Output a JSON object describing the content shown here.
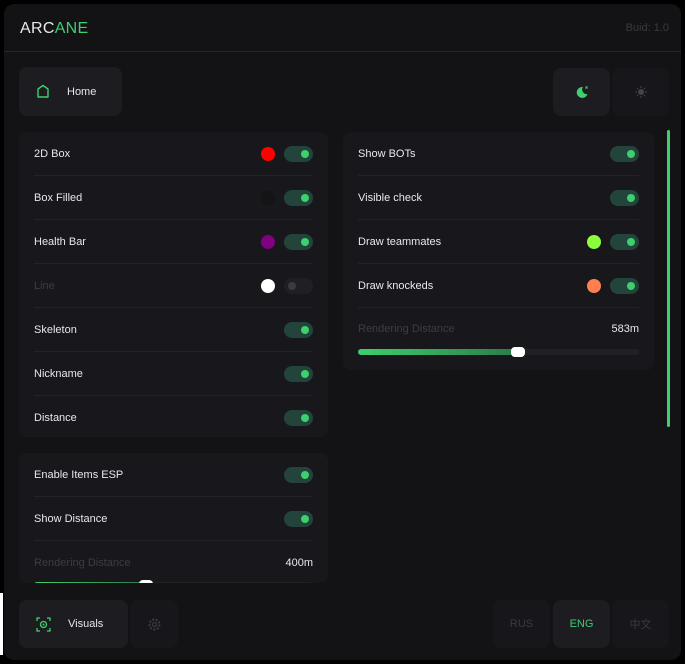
{
  "app": {
    "logo_part1": "ARC",
    "logo_part2": "ANE",
    "build": "Buid: 1.0"
  },
  "top": {
    "home_label": "Home",
    "home_icon": "home-icon",
    "theme_dark_icon": "moon-icon",
    "theme_light_icon": "sun-icon",
    "active_theme": "dark"
  },
  "player_esp": {
    "items": [
      {
        "label": "2D Box",
        "color": "#ff0000",
        "enabled": true,
        "disabled": false
      },
      {
        "label": "Box Filled",
        "color": "#141417",
        "enabled": true,
        "disabled": false
      },
      {
        "label": "Health Bar",
        "color": "#800080",
        "enabled": true,
        "disabled": false
      },
      {
        "label": "Line",
        "color": "#ffffff",
        "enabled": false,
        "disabled": true
      },
      {
        "label": "Skeleton",
        "enabled": true,
        "disabled": false
      },
      {
        "label": "Nickname",
        "enabled": true,
        "disabled": false
      },
      {
        "label": "Distance",
        "enabled": true,
        "disabled": false
      }
    ]
  },
  "items_esp": {
    "items": [
      {
        "label": "Enable Items ESP",
        "enabled": true
      },
      {
        "label": "Show Distance",
        "enabled": true
      }
    ],
    "slider": {
      "label": "Rendering Distance",
      "value": "400m",
      "fraction": 0.4
    }
  },
  "right_panel": {
    "items": [
      {
        "label": "Show BOTs",
        "enabled": true
      },
      {
        "label": "Visible check",
        "enabled": true
      },
      {
        "label": "Draw teammates",
        "color": "#8cff3c",
        "enabled": true
      },
      {
        "label": "Draw knockeds",
        "color": "#ff7f50",
        "enabled": true
      }
    ],
    "slider": {
      "label": "Rendering Distance",
      "value": "583m",
      "fraction": 0.57
    }
  },
  "bottom": {
    "visuals_label": "Visuals",
    "visuals_icon": "eye-scan-icon",
    "settings_icon": "gear-icon",
    "languages": [
      "RUS",
      "ENG",
      "中文"
    ],
    "active_language": "ENG"
  },
  "colors": {
    "accent": "#3ecf6e",
    "bg": "#131316",
    "panel": "#18181c"
  }
}
